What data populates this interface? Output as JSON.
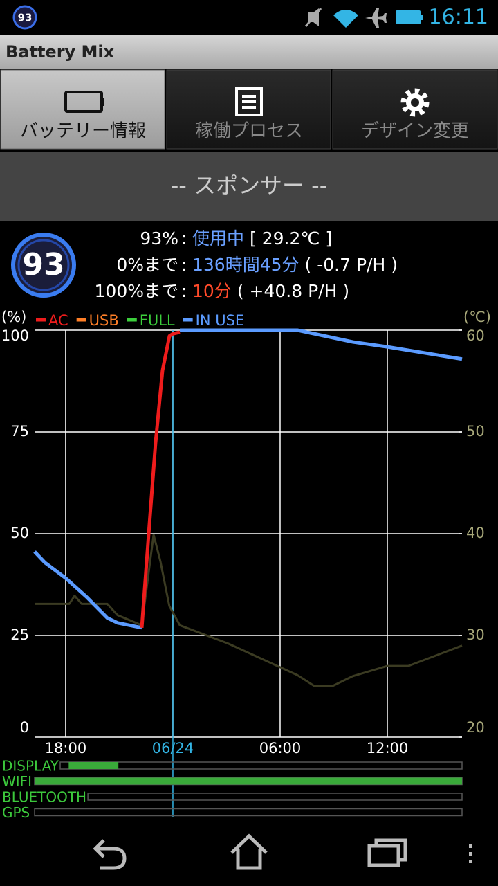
{
  "status_bar": {
    "badge": "93",
    "time": "16:11"
  },
  "app_bar": {
    "title": "Battery Mix"
  },
  "tabs": [
    "バッテリー情報",
    "稼働プロセス",
    "デザイン変更"
  ],
  "sponsor": "-- スポンサー --",
  "status": {
    "badge": "93",
    "rows": [
      {
        "label": "93%",
        "sep": ":",
        "value": "使用中",
        "extra": "[ 29.2℃ ]"
      },
      {
        "label": "0%まで",
        "sep": ":",
        "value": "136時間45分",
        "extra": "( -0.7 P/H )"
      },
      {
        "label": "100%まで",
        "sep": ":",
        "value": "10分",
        "extra": "( +40.8 P/H )"
      }
    ]
  },
  "chart_data": {
    "type": "line",
    "ylabel": "(%)",
    "y2label": "(℃)",
    "xlim": [
      16.26,
      40.18
    ],
    "xticks": [
      {
        "value": 18,
        "label": "18:00"
      },
      {
        "value": 24,
        "label": "06/24"
      },
      {
        "value": 30,
        "label": "06:00"
      },
      {
        "value": 36,
        "label": "12:00"
      }
    ],
    "cursor_x": 24,
    "ylim": [
      0,
      100
    ],
    "yticks": [
      0,
      25,
      50,
      75,
      100
    ],
    "y2lim": [
      20,
      60
    ],
    "y2ticks": [
      20,
      30,
      40,
      50,
      60
    ],
    "grid": true,
    "series": [
      {
        "name": "AC",
        "color": "#ee1c1c",
        "x": [
          22.26,
          22.65,
          23.03,
          23.42,
          23.81,
          24.0,
          24.39
        ],
        "values": [
          26.9,
          50.2,
          72.3,
          90.1,
          98.6,
          99.1,
          99.5
        ]
      },
      {
        "name": "USB",
        "color": "#ff7f27",
        "x": [],
        "values": []
      },
      {
        "name": "FULL",
        "color": "#3ccf3c",
        "x": [],
        "values": []
      },
      {
        "name": "IN USE",
        "color": "#5b9bff",
        "x": [
          16.26,
          16.84,
          18.0,
          19.16,
          20.33,
          20.9,
          22.26,
          23.42,
          24.39,
          30.97,
          34.07,
          36.0,
          40.18
        ],
        "values": [
          45.6,
          42.9,
          39.1,
          34.5,
          29.3,
          28.1,
          26.9,
          null,
          100,
          100,
          97.1,
          95.9,
          92.9
        ]
      }
    ],
    "temperature": {
      "color": "#3b3b22",
      "axis": "y2",
      "x": [
        16.26,
        18.2,
        18.5,
        18.9,
        20.33,
        20.9,
        22.26,
        22.92,
        23.3,
        23.8,
        24.39,
        27.1,
        30.97,
        31.94,
        32.9,
        34.07,
        36.0,
        37.17,
        40.18
      ],
      "values": [
        33.1,
        33.1,
        33.9,
        33.1,
        33.1,
        32.0,
        31.0,
        39.9,
        37.3,
        32.9,
        31.0,
        29.2,
        26.1,
        25.0,
        25.0,
        26.0,
        27.0,
        27.0,
        29.0
      ]
    },
    "activity": [
      {
        "label": "DISPLAY",
        "on": [
          [
            18.17,
            20.95
          ]
        ]
      },
      {
        "label": "WIFI",
        "on": [
          [
            16.26,
            40.18
          ]
        ]
      },
      {
        "label": "BLUETOOTH",
        "on": []
      },
      {
        "label": "GPS",
        "on": []
      }
    ]
  }
}
